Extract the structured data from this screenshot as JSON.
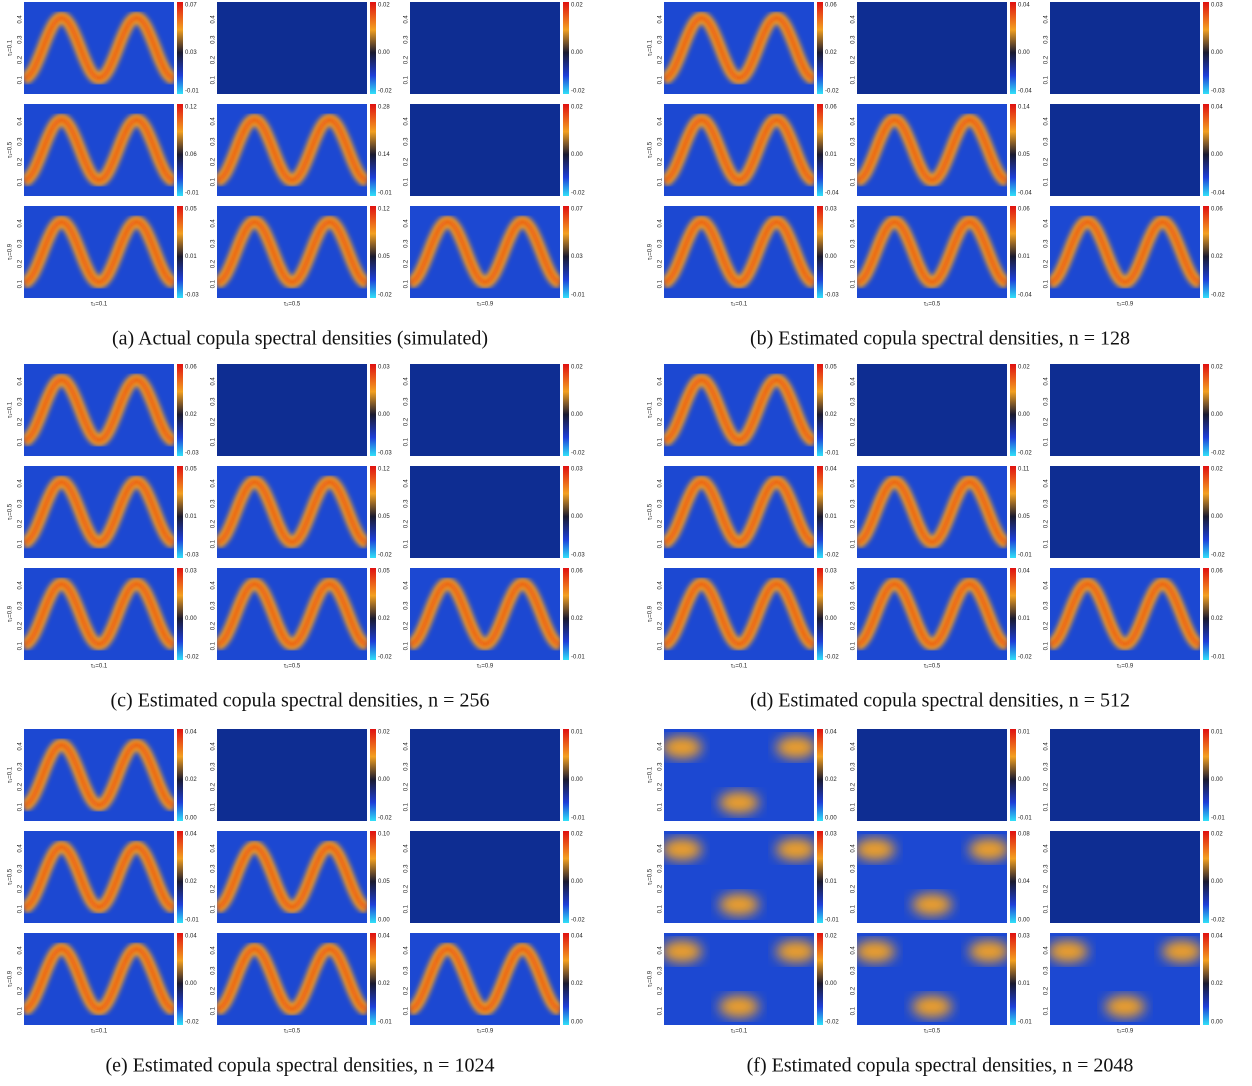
{
  "row_labels": [
    "τ₁=0.1",
    "τ₁=0.5",
    "τ₁=0.9"
  ],
  "col_labels": [
    "τ₂=0.1",
    "τ₂=0.5",
    "τ₂=0.9"
  ],
  "yticks": [
    "0.1",
    "0.2",
    "0.3",
    "0.4"
  ],
  "figures": [
    {
      "caption": "(a) Actual copula spectral densities (simulated)",
      "colorbars": [
        [
          [
            "0.07",
            "0.03",
            "-0.01"
          ],
          [
            "0.02",
            "0.00",
            "-0.02"
          ],
          [
            "0.02",
            "0.00",
            "-0.02"
          ]
        ],
        [
          [
            "0.12",
            "0.06",
            "-0.01"
          ],
          [
            "0.28",
            "0.14",
            "-0.01"
          ],
          [
            "0.02",
            "0.00",
            "-0.02"
          ]
        ],
        [
          [
            "0.05",
            "0.01",
            "-0.03"
          ],
          [
            "0.12",
            "0.05",
            "-0.02"
          ],
          [
            "0.07",
            "0.03",
            "-0.01"
          ]
        ]
      ]
    },
    {
      "caption": "(b) Estimated copula spectral densities, n = 128",
      "colorbars": [
        [
          [
            "0.06",
            "0.02",
            "-0.02"
          ],
          [
            "0.04",
            "0.00",
            "-0.04"
          ],
          [
            "0.03",
            "0.00",
            "-0.03"
          ]
        ],
        [
          [
            "0.06",
            "0.01",
            "-0.04"
          ],
          [
            "0.14",
            "0.05",
            "-0.04"
          ],
          [
            "0.04",
            "0.00",
            "-0.04"
          ]
        ],
        [
          [
            "0.03",
            "0.00",
            "-0.03"
          ],
          [
            "0.06",
            "0.01",
            "-0.04"
          ],
          [
            "0.06",
            "0.02",
            "-0.02"
          ]
        ]
      ]
    },
    {
      "caption": "(c) Estimated copula spectral densities, n = 256",
      "colorbars": [
        [
          [
            "0.06",
            "0.02",
            "-0.03"
          ],
          [
            "0.03",
            "0.00",
            "-0.03"
          ],
          [
            "0.02",
            "0.00",
            "-0.02"
          ]
        ],
        [
          [
            "0.05",
            "0.01",
            "-0.03"
          ],
          [
            "0.12",
            "0.05",
            "-0.02"
          ],
          [
            "0.03",
            "0.00",
            "-0.03"
          ]
        ],
        [
          [
            "0.03",
            "0.00",
            "-0.02"
          ],
          [
            "0.05",
            "0.02",
            "-0.02"
          ],
          [
            "0.06",
            "0.02",
            "-0.01"
          ]
        ]
      ]
    },
    {
      "caption": "(d) Estimated copula spectral densities, n = 512",
      "colorbars": [
        [
          [
            "0.05",
            "0.02",
            "-0.01"
          ],
          [
            "0.02",
            "0.00",
            "-0.02"
          ],
          [
            "0.02",
            "0.00",
            "-0.02"
          ]
        ],
        [
          [
            "0.04",
            "0.01",
            "-0.02"
          ],
          [
            "0.11",
            "0.05",
            "-0.01"
          ],
          [
            "0.02",
            "0.00",
            "-0.02"
          ]
        ],
        [
          [
            "0.03",
            "0.00",
            "-0.02"
          ],
          [
            "0.04",
            "0.01",
            "-0.02"
          ],
          [
            "0.06",
            "0.02",
            "-0.01"
          ]
        ]
      ]
    },
    {
      "caption": "(e) Estimated copula spectral densities, n = 1024",
      "colorbars": [
        [
          [
            "0.04",
            "0.02",
            "0.00"
          ],
          [
            "0.02",
            "0.00",
            "-0.02"
          ],
          [
            "0.01",
            "0.00",
            "-0.01"
          ]
        ],
        [
          [
            "0.04",
            "0.02",
            "-0.01"
          ],
          [
            "0.10",
            "0.05",
            "0.00"
          ],
          [
            "0.02",
            "0.00",
            "-0.02"
          ]
        ],
        [
          [
            "0.04",
            "0.00",
            "-0.02"
          ],
          [
            "0.04",
            "0.02",
            "-0.01"
          ],
          [
            "0.04",
            "0.02",
            "0.00"
          ]
        ]
      ]
    },
    {
      "caption": "(f) Estimated copula spectral densities, n = 2048",
      "colorbars": [
        [
          [
            "0.04",
            "0.02",
            "0.00"
          ],
          [
            "0.01",
            "0.00",
            "-0.01"
          ],
          [
            "0.01",
            "0.00",
            "-0.01"
          ]
        ],
        [
          [
            "0.03",
            "0.01",
            "-0.01"
          ],
          [
            "0.08",
            "0.04",
            "0.00"
          ],
          [
            "0.02",
            "0.00",
            "-0.02"
          ]
        ],
        [
          [
            "0.02",
            "0.00",
            "-0.02"
          ],
          [
            "0.03",
            "0.01",
            "-0.01"
          ],
          [
            "0.04",
            "0.02",
            "0.00"
          ]
        ]
      ]
    }
  ]
}
